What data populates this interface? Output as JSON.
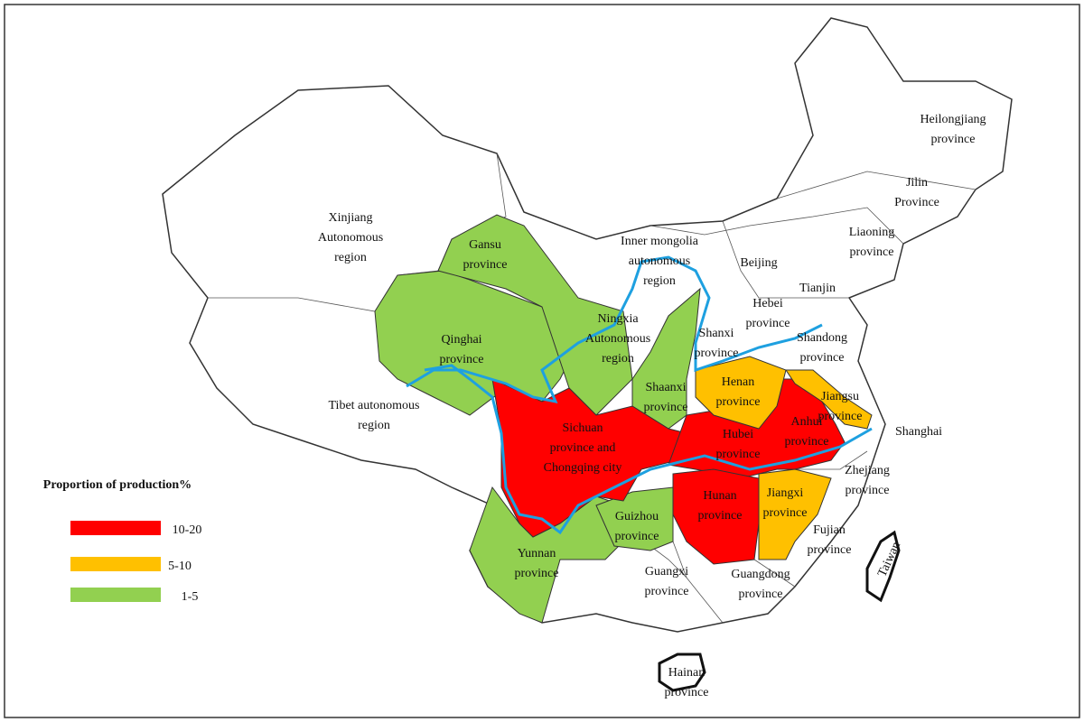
{
  "legend": {
    "title": "Proportion of production%",
    "items": [
      {
        "label": "10-20",
        "color": "#ff0000"
      },
      {
        "label": "5-10",
        "color": "#ffc000"
      },
      {
        "label": "1-5",
        "color": "#92d050"
      }
    ]
  },
  "regions": [
    {
      "label": [
        "Xinjiang",
        "Autonomous",
        "region"
      ]
    },
    {
      "label": [
        "Tibet autonomous",
        "region"
      ]
    },
    {
      "label": [
        "Gansu",
        "province"
      ]
    },
    {
      "label": [
        "Inner mongolia",
        "autonomous",
        "region"
      ]
    },
    {
      "label": [
        "Qinghai",
        "province"
      ]
    },
    {
      "label": [
        "Ningxia",
        "Autonomous",
        "region"
      ]
    },
    {
      "label": [
        "Beijing"
      ]
    },
    {
      "label": [
        "Tianjin"
      ]
    },
    {
      "label": [
        "Hebei",
        "province"
      ]
    },
    {
      "label": [
        "Shanxi",
        "province"
      ]
    },
    {
      "label": [
        "Shandong",
        "province"
      ]
    },
    {
      "label": [
        "Shaanxi",
        "province"
      ]
    },
    {
      "label": [
        "Henan",
        "province"
      ]
    },
    {
      "label": [
        "Jiangsu",
        "province"
      ]
    },
    {
      "label": [
        "Anhui",
        "province"
      ]
    },
    {
      "label": [
        "Hubei",
        "province"
      ]
    },
    {
      "label": [
        "Sichuan",
        "province and",
        "Chongqing city"
      ]
    },
    {
      "label": [
        "Shanghai"
      ]
    },
    {
      "label": [
        "Zhejiang",
        "province"
      ]
    },
    {
      "label": [
        "Hunan",
        "province"
      ]
    },
    {
      "label": [
        "Jiangxi",
        "province"
      ]
    },
    {
      "label": [
        "Guizhou",
        "province"
      ]
    },
    {
      "label": [
        "Fujian",
        "province"
      ]
    },
    {
      "label": [
        "Yunnan",
        "province"
      ]
    },
    {
      "label": [
        "Guangxi",
        "province"
      ]
    },
    {
      "label": [
        "Guangdong",
        "province"
      ]
    },
    {
      "label": [
        "Taiwan"
      ]
    },
    {
      "label": [
        "Hainan",
        "province"
      ]
    },
    {
      "label": [
        "Heilongjiang",
        "province"
      ]
    },
    {
      "label": [
        "Jilin",
        "Province"
      ]
    },
    {
      "label": [
        "Liaoning",
        "province"
      ]
    }
  ]
}
